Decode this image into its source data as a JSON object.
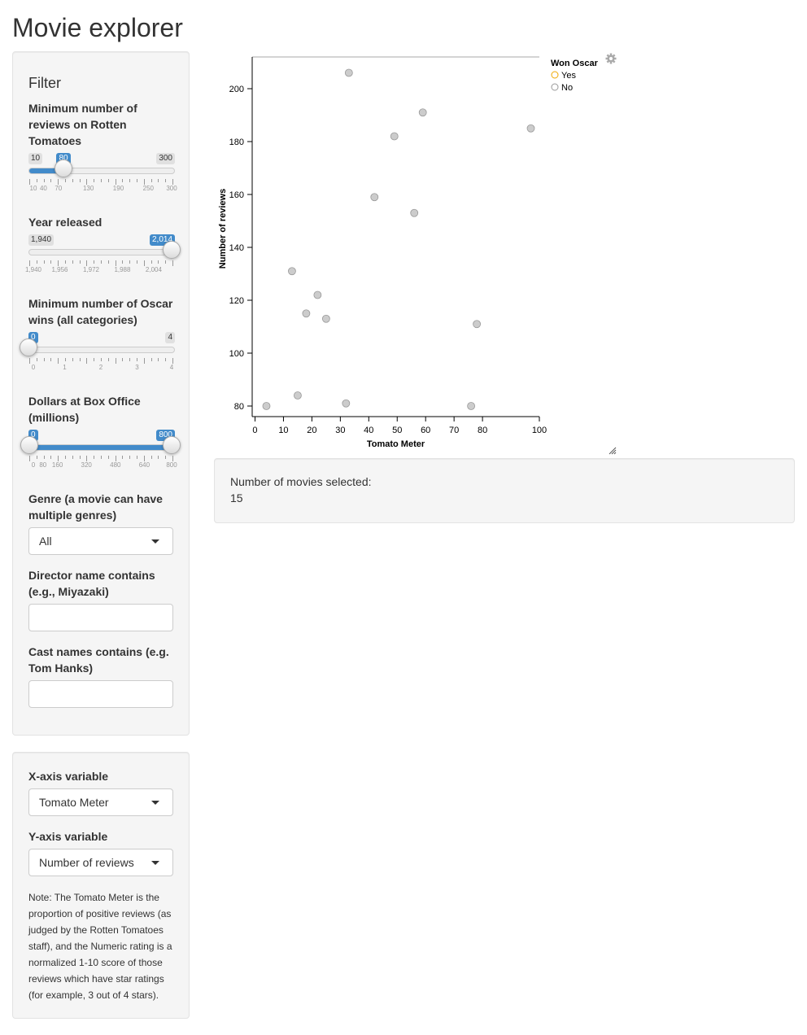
{
  "app": {
    "title": "Movie explorer"
  },
  "filter": {
    "title": "Filter",
    "reviews": {
      "label": "Minimum number of reviews on Rotten Tomatoes",
      "min": "10",
      "max": "300",
      "value": "80",
      "min_num": 10,
      "max_num": 300,
      "value_num": 80,
      "tick_labels": [
        "10",
        "40",
        "70",
        "130",
        "190",
        "250",
        "300"
      ],
      "tick_values": [
        10,
        40,
        70,
        130,
        190,
        250,
        300
      ]
    },
    "year": {
      "label": "Year released",
      "min": "1,940",
      "value": "2,014",
      "min_num": 1940,
      "max_num": 2014,
      "low_num": 1940,
      "value_num": 2014,
      "tick_labels": [
        "1,940",
        "1,956",
        "1,972",
        "1,988",
        "2,004"
      ],
      "tick_values": [
        1940,
        1956,
        1972,
        1988,
        2004
      ]
    },
    "oscars": {
      "label": "Minimum number of Oscar wins (all categories)",
      "value": "0",
      "max": "4",
      "min_num": 0,
      "max_num": 4,
      "value_num": 0,
      "tick_labels": [
        "0",
        "1",
        "2",
        "3",
        "4"
      ],
      "tick_values": [
        0,
        1,
        2,
        3,
        4
      ]
    },
    "boxoffice": {
      "label": "Dollars at Box Office (millions)",
      "low": "0",
      "high": "800",
      "min_num": 0,
      "max_num": 800,
      "low_num": 0,
      "high_num": 800,
      "tick_labels": [
        "0",
        "80",
        "160",
        "320",
        "480",
        "640",
        "800"
      ],
      "tick_values": [
        0,
        80,
        160,
        320,
        480,
        640,
        800
      ]
    },
    "genre": {
      "label": "Genre (a movie can have multiple genres)",
      "value": "All"
    },
    "director": {
      "label": "Director name contains (e.g., Miyazaki)",
      "value": ""
    },
    "cast": {
      "label": "Cast names contains (e.g. Tom Hanks)",
      "value": ""
    }
  },
  "axes_panel": {
    "x_label": "X-axis variable",
    "x_value": "Tomato Meter",
    "y_label": "Y-axis variable",
    "y_value": "Number of reviews",
    "note": "Note: The Tomato Meter is the proportion of positive reviews (as judged by the Rotten Tomatoes staff), and the Numeric rating is a normalized 1-10 score of those reviews which have star ratings (for example, 3 out of 4 stars)."
  },
  "summary": {
    "label": "Number of movies selected:",
    "value": "15"
  },
  "chart_data": {
    "type": "scatter",
    "xlabel": "Tomato Meter",
    "ylabel": "Number of reviews",
    "xlim": [
      -1,
      100
    ],
    "ylim": [
      76,
      212
    ],
    "x_ticks": [
      0,
      10,
      20,
      30,
      40,
      50,
      60,
      70,
      80,
      100
    ],
    "y_ticks": [
      80,
      100,
      120,
      140,
      160,
      180,
      200
    ],
    "legend": {
      "title": "Won Oscar",
      "entries": [
        "Yes",
        "No"
      ],
      "colors": [
        "#f0a800",
        "#999999"
      ],
      "position": "top-right"
    },
    "point_color": "#cccccc",
    "point_stroke": "#999999",
    "series": [
      {
        "values": [
          {
            "x": 33,
            "y": 206
          },
          {
            "x": 59,
            "y": 191
          },
          {
            "x": 97,
            "y": 185
          },
          {
            "x": 49,
            "y": 182
          },
          {
            "x": 42,
            "y": 159
          },
          {
            "x": 56,
            "y": 153
          },
          {
            "x": 13,
            "y": 131
          },
          {
            "x": 22,
            "y": 122
          },
          {
            "x": 18,
            "y": 115
          },
          {
            "x": 25,
            "y": 113
          },
          {
            "x": 78,
            "y": 111
          },
          {
            "x": 15,
            "y": 84
          },
          {
            "x": 32,
            "y": 81
          },
          {
            "x": 4,
            "y": 80
          },
          {
            "x": 76,
            "y": 80
          }
        ]
      }
    ]
  }
}
